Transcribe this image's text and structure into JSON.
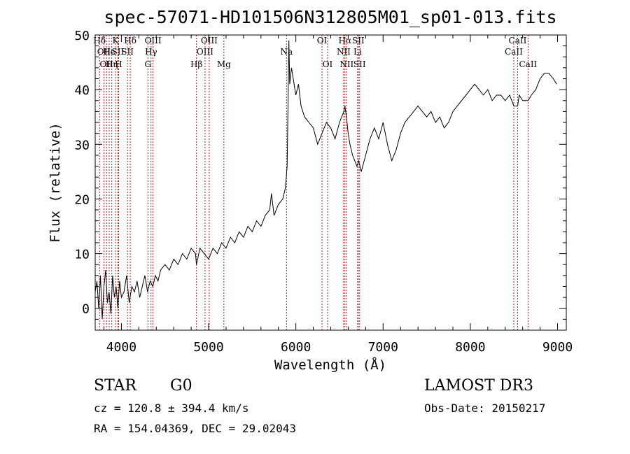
{
  "chart_data": {
    "type": "line",
    "title": "spec-57071-HD101506N312805M01_sp01-013.fits",
    "xlabel": "Wavelength (Å)",
    "ylabel": "Flux (relative)",
    "xlim": [
      3700,
      9100
    ],
    "ylim": [
      -4,
      50
    ],
    "xticks": [
      4000,
      5000,
      6000,
      7000,
      8000,
      9000
    ],
    "yticks": [
      0,
      10,
      20,
      30,
      40,
      50
    ],
    "grid": false,
    "line_color": "#000000",
    "marker_color": "#b22222",
    "series": [
      {
        "x": [
          3700,
          3720,
          3740,
          3760,
          3780,
          3800,
          3820,
          3840,
          3860,
          3880,
          3900,
          3920,
          3940,
          3960,
          3980,
          4000,
          4030,
          4060,
          4090,
          4120,
          4150,
          4180,
          4210,
          4240,
          4270,
          4300,
          4330,
          4360,
          4390,
          4420,
          4450,
          4500,
          4550,
          4600,
          4650,
          4700,
          4750,
          4800,
          4850,
          4860,
          4900,
          4950,
          5000,
          5050,
          5100,
          5150,
          5200,
          5250,
          5300,
          5350,
          5400,
          5450,
          5500,
          5550,
          5600,
          5650,
          5700,
          5720,
          5750,
          5800,
          5850,
          5880,
          5900,
          5910,
          5920,
          5930,
          5950,
          5970,
          6000,
          6030,
          6060,
          6100,
          6150,
          6200,
          6250,
          6300,
          6350,
          6400,
          6450,
          6500,
          6550,
          6563,
          6580,
          6600,
          6620,
          6650,
          6700,
          6720,
          6750,
          6800,
          6850,
          6900,
          6950,
          7000,
          7050,
          7100,
          7150,
          7200,
          7250,
          7300,
          7350,
          7400,
          7450,
          7500,
          7550,
          7600,
          7650,
          7700,
          7750,
          7800,
          7850,
          7900,
          7950,
          8000,
          8050,
          8100,
          8150,
          8200,
          8250,
          8300,
          8350,
          8400,
          8450,
          8500,
          8542,
          8560,
          8600,
          8662,
          8700,
          8750,
          8800,
          8850,
          8900,
          8950,
          8990
        ],
        "y": [
          3,
          5,
          0,
          6,
          -2,
          4,
          7,
          1,
          3,
          -1,
          6,
          2,
          4,
          0,
          5,
          2,
          3,
          6,
          1,
          4,
          3,
          5,
          2,
          4,
          6,
          3,
          5,
          4,
          6,
          5,
          7,
          8,
          7,
          9,
          8,
          10,
          9,
          11,
          10,
          8,
          11,
          10,
          9,
          11,
          10,
          12,
          11,
          13,
          12,
          14,
          13,
          15,
          14,
          16,
          15,
          17,
          18,
          21,
          17,
          19,
          20,
          22,
          26,
          37,
          49,
          41,
          44,
          42,
          39,
          41,
          37,
          35,
          34,
          33,
          30,
          32,
          34,
          33,
          31,
          34,
          36,
          37,
          35,
          32,
          30,
          28,
          26,
          27,
          25,
          28,
          31,
          33,
          31,
          34,
          30,
          27,
          29,
          32,
          34,
          35,
          36,
          37,
          36,
          35,
          36,
          34,
          35,
          33,
          34,
          36,
          37,
          38,
          39,
          40,
          41,
          40,
          39,
          40,
          38,
          39,
          39,
          38,
          39,
          37,
          37,
          39,
          38,
          38,
          39,
          40,
          42,
          43,
          43,
          42,
          41
        ]
      }
    ],
    "line_markers": [
      {
        "x": 3750,
        "row": 1,
        "label": "Hδ"
      },
      {
        "x": 3800,
        "row": 2,
        "label": "OII"
      },
      {
        "x": 3830,
        "row": 3,
        "label": "OII"
      },
      {
        "x": 3860,
        "row": 2,
        "label": "He"
      },
      {
        "x": 3890,
        "row": 3,
        "label": "Hη"
      },
      {
        "x": 3933,
        "row": 1,
        "label": "K"
      },
      {
        "x": 3969,
        "row": 3,
        "label": "H"
      },
      {
        "x": 3960,
        "row": 2,
        "label": "SII"
      },
      {
        "x": 4102,
        "row": 1,
        "label": "Hδ"
      },
      {
        "x": 4070,
        "row": 2,
        "label": "SII"
      },
      {
        "x": 4304,
        "row": 3,
        "label": "G"
      },
      {
        "x": 4340,
        "row": 2,
        "label": "Hγ"
      },
      {
        "x": 4363,
        "row": 1,
        "label": "OIII"
      },
      {
        "x": 4861,
        "row": 3,
        "label": "Hβ"
      },
      {
        "x": 4959,
        "row": 2,
        "label": "OIII"
      },
      {
        "x": 5007,
        "row": 1,
        "label": "OIII"
      },
      {
        "x": 5175,
        "row": 3,
        "label": "Mg"
      },
      {
        "x": 5893,
        "row": 2,
        "label": "Na"
      },
      {
        "x": 6300,
        "row": 1,
        "label": "OI"
      },
      {
        "x": 6364,
        "row": 3,
        "label": "OI"
      },
      {
        "x": 6548,
        "row": 2,
        "label": "NII"
      },
      {
        "x": 6563,
        "row": 1,
        "label": "Hα"
      },
      {
        "x": 6583,
        "row": 3,
        "label": "NII"
      },
      {
        "x": 6708,
        "row": 2,
        "label": "Li"
      },
      {
        "x": 6716,
        "row": 1,
        "label": "SII"
      },
      {
        "x": 6731,
        "row": 3,
        "label": "SII"
      },
      {
        "x": 8498,
        "row": 2,
        "label": "CaII"
      },
      {
        "x": 8542,
        "row": 1,
        "label": "CaII"
      },
      {
        "x": 8662,
        "row": 3,
        "label": "CaII"
      }
    ]
  },
  "info": {
    "object_class": "STAR",
    "subclass": "G0",
    "survey": "LAMOST DR3",
    "redshift": "cz = 120.8 ± 394.4 km/s",
    "obs_date": "Obs-Date: 20150217",
    "coords": "RA = 154.04369, DEC =  29.02043"
  }
}
